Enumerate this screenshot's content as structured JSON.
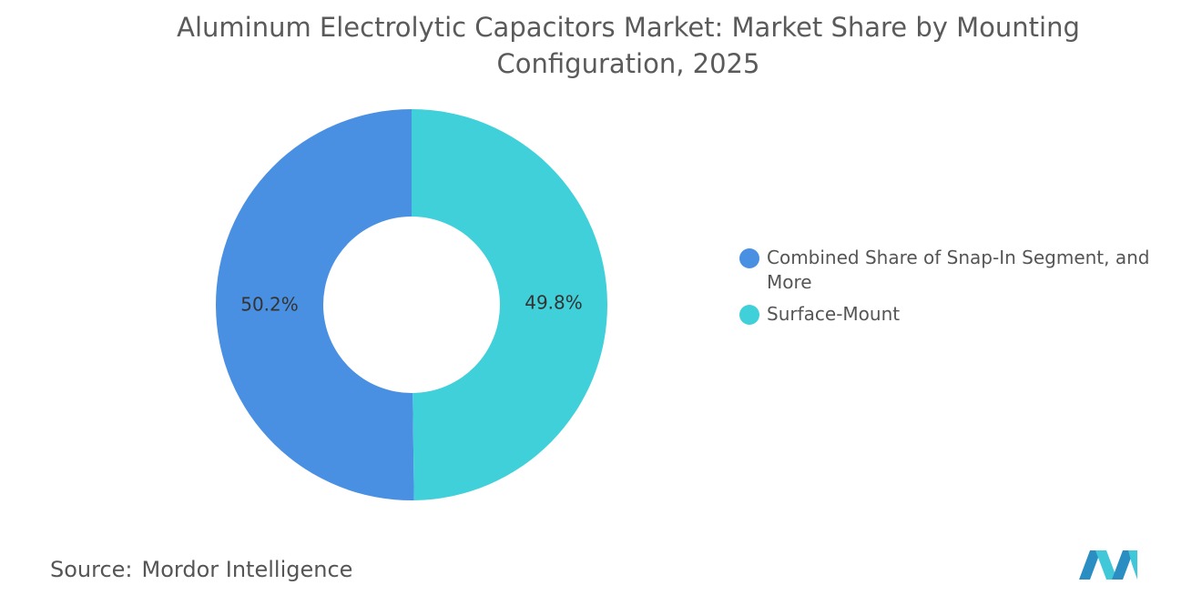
{
  "chart_data": {
    "type": "pie",
    "title": "Aluminum Electrolytic Capacitors Market: Market Share by Mounting Configuration, 2025",
    "categories": [
      "Combined Share of Snap-In Segment, and More",
      "Surface-Mount"
    ],
    "values": [
      50.2,
      49.8
    ],
    "value_labels": [
      "50.2%",
      "49.8%"
    ],
    "colors": [
      "#4a90e2",
      "#40d0da"
    ],
    "source_label": "Source:",
    "source": "Mordor Intelligence"
  }
}
